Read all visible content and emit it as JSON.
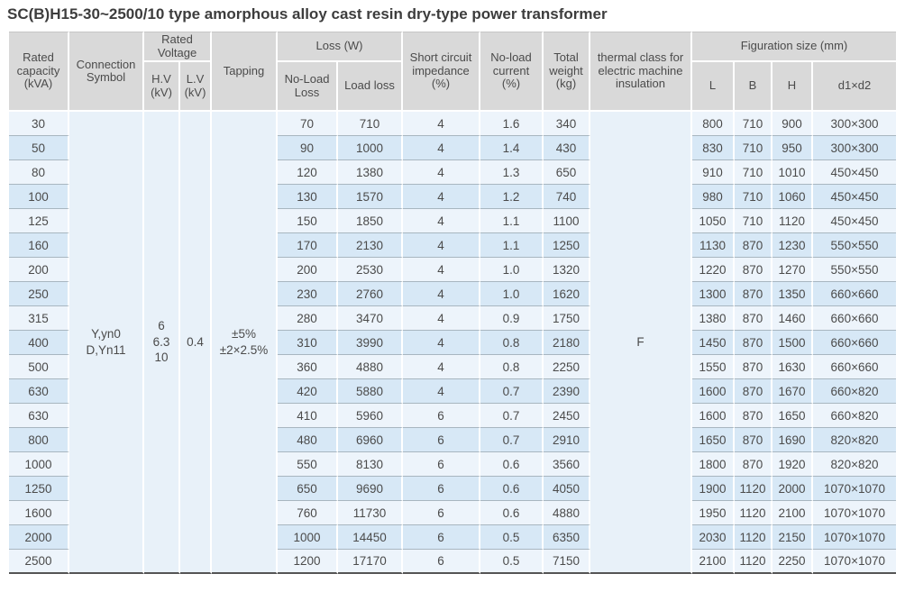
{
  "title": "SC(B)H15-30~2500/10 type amorphous alloy cast resin dry-type power transformer",
  "colors": {
    "header_bg": "#d9d9d9",
    "row_light": "#edf4fb",
    "row_dark": "#d7e8f6",
    "merged_bg": "#e8f1f9",
    "row_line": "#a8b6c0",
    "bottom_line": "#555555",
    "text": "#4b4b4b"
  },
  "header": {
    "rated_capacity": "Rated capacity (kVA)",
    "connection_symbol": "Connection Symbol",
    "rated_voltage": "Rated Voltage",
    "hv": "H.V (kV)",
    "lv": "L.V (kV)",
    "tapping": "Tapping",
    "loss": "Loss (W)",
    "no_load_loss": "No-Load Loss",
    "load_loss": "Load loss",
    "short_circuit_impedance": "Short circuit impedance (%)",
    "no_load_current": "No-load current (%)",
    "total_weight": "Total weight (kg)",
    "thermal_class": "thermal class for electric machine insulation",
    "figuration_size": "Figuration size (mm)",
    "l": "L",
    "b": "B",
    "h": "H",
    "d1d2": "d1×d2"
  },
  "merged_cells": {
    "connection_symbol": "Y,yn0\nD,Yn11",
    "hv": "6\n6.3\n10",
    "lv": "0.4",
    "tapping": "±5%\n±2×2.5%",
    "thermal_class": "F"
  },
  "row_columns": [
    "capacity",
    "no_load_loss",
    "load_loss",
    "short_circuit_impedance",
    "no_load_current",
    "total_weight",
    "L",
    "B",
    "H",
    "d1xd2"
  ],
  "rows": [
    [
      "30",
      "70",
      "710",
      "4",
      "1.6",
      "340",
      "800",
      "710",
      "900",
      "300×300"
    ],
    [
      "50",
      "90",
      "1000",
      "4",
      "1.4",
      "430",
      "830",
      "710",
      "950",
      "300×300"
    ],
    [
      "80",
      "120",
      "1380",
      "4",
      "1.3",
      "650",
      "910",
      "710",
      "1010",
      "450×450"
    ],
    [
      "100",
      "130",
      "1570",
      "4",
      "1.2",
      "740",
      "980",
      "710",
      "1060",
      "450×450"
    ],
    [
      "125",
      "150",
      "1850",
      "4",
      "1.1",
      "1100",
      "1050",
      "710",
      "1120",
      "450×450"
    ],
    [
      "160",
      "170",
      "2130",
      "4",
      "1.1",
      "1250",
      "1130",
      "870",
      "1230",
      "550×550"
    ],
    [
      "200",
      "200",
      "2530",
      "4",
      "1.0",
      "1320",
      "1220",
      "870",
      "1270",
      "550×550"
    ],
    [
      "250",
      "230",
      "2760",
      "4",
      "1.0",
      "1620",
      "1300",
      "870",
      "1350",
      "660×660"
    ],
    [
      "315",
      "280",
      "3470",
      "4",
      "0.9",
      "1750",
      "1380",
      "870",
      "1460",
      "660×660"
    ],
    [
      "400",
      "310",
      "3990",
      "4",
      "0.8",
      "2180",
      "1450",
      "870",
      "1500",
      "660×660"
    ],
    [
      "500",
      "360",
      "4880",
      "4",
      "0.8",
      "2250",
      "1550",
      "870",
      "1630",
      "660×660"
    ],
    [
      "630",
      "420",
      "5880",
      "4",
      "0.7",
      "2390",
      "1600",
      "870",
      "1670",
      "660×820"
    ],
    [
      "630",
      "410",
      "5960",
      "6",
      "0.7",
      "2450",
      "1600",
      "870",
      "1650",
      "660×820"
    ],
    [
      "800",
      "480",
      "6960",
      "6",
      "0.7",
      "2910",
      "1650",
      "870",
      "1690",
      "820×820"
    ],
    [
      "1000",
      "550",
      "8130",
      "6",
      "0.6",
      "3560",
      "1800",
      "870",
      "1920",
      "820×820"
    ],
    [
      "1250",
      "650",
      "9690",
      "6",
      "0.6",
      "4050",
      "1900",
      "1120",
      "2000",
      "1070×1070"
    ],
    [
      "1600",
      "760",
      "11730",
      "6",
      "0.6",
      "4880",
      "1950",
      "1120",
      "2100",
      "1070×1070"
    ],
    [
      "2000",
      "1000",
      "14450",
      "6",
      "0.5",
      "6350",
      "2030",
      "1120",
      "2150",
      "1070×1070"
    ],
    [
      "2500",
      "1200",
      "17170",
      "6",
      "0.5",
      "7150",
      "2100",
      "1120",
      "2250",
      "1070×1070"
    ]
  ]
}
